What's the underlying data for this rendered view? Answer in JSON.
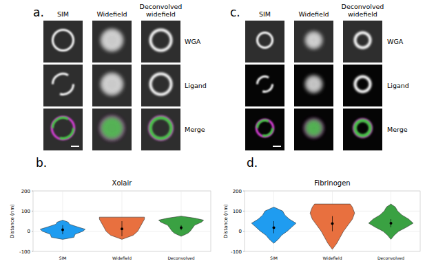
{
  "figure": {
    "panels": [
      {
        "label": "a.",
        "columns": [
          "SIM",
          "Widefield",
          "Deconvolved widefield"
        ],
        "rows": [
          "WGA",
          "Ligand",
          "Merge"
        ]
      },
      {
        "label": "c.",
        "columns": [
          "SIM",
          "Widefield",
          "Deconvolved widefield"
        ],
        "rows": [
          "WGA",
          "Ligand",
          "Merge"
        ]
      }
    ],
    "chart_labels": [
      "b.",
      "d."
    ]
  },
  "chart_data": [
    {
      "type": "violin",
      "title": "Xolair",
      "y_label": "Distance (nm)",
      "categories": [
        "SIM",
        "Widefield",
        "Deconvolved"
      ],
      "colors": [
        "#1f9cf0",
        "#e8703f",
        "#3aa142"
      ],
      "ylim": [
        -100,
        200
      ],
      "yticks": [
        -100,
        0,
        100,
        200
      ],
      "grid": true,
      "means": [
        7,
        12,
        18
      ],
      "whisker_low": [
        -15,
        -25,
        5
      ],
      "whisker_high": [
        30,
        50,
        30
      ],
      "violins": [
        {
          "y": [
            -40,
            -30,
            -15,
            0,
            10,
            20,
            35,
            45,
            55
          ],
          "width": [
            0,
            0.5,
            0.55,
            0.9,
            1,
            0.7,
            0.3,
            0.25,
            0
          ]
        },
        {
          "y": [
            -40,
            -20,
            0,
            20,
            40,
            60,
            70
          ],
          "width": [
            0,
            0.5,
            0.7,
            0.8,
            0.9,
            1,
            1
          ]
        },
        {
          "y": [
            -25,
            -10,
            0,
            15,
            30,
            45,
            55,
            65,
            75
          ],
          "width": [
            0,
            0.3,
            0.4,
            0.5,
            0.6,
            0.9,
            1,
            0.6,
            0
          ]
        }
      ]
    },
    {
      "type": "violin",
      "title": "Fibrinogen",
      "y_label": "Distance (nm)",
      "categories": [
        "SIM",
        "Widefield",
        "Deconvolved"
      ],
      "colors": [
        "#1f9cf0",
        "#e8703f",
        "#3aa142"
      ],
      "ylim": [
        -100,
        200
      ],
      "yticks": [
        -100,
        0,
        100,
        200
      ],
      "grid": true,
      "means": [
        18,
        38,
        40
      ],
      "whisker_low": [
        -10,
        0,
        20
      ],
      "whisker_high": [
        50,
        75,
        60
      ],
      "violins": [
        {
          "y": [
            -60,
            -40,
            -20,
            0,
            20,
            40,
            60,
            80,
            100,
            120
          ],
          "width": [
            0,
            0.2,
            0.35,
            0.6,
            0.8,
            1,
            0.7,
            0.5,
            0.4,
            0
          ]
        },
        {
          "y": [
            -90,
            -60,
            -30,
            0,
            30,
            60,
            90,
            120,
            135
          ],
          "width": [
            0,
            0.2,
            0.35,
            0.5,
            0.7,
            0.9,
            1,
            0.9,
            0.8
          ]
        },
        {
          "y": [
            -40,
            -20,
            0,
            20,
            40,
            60,
            80,
            100,
            120,
            135
          ],
          "width": [
            0,
            0.15,
            0.35,
            0.7,
            1,
            0.8,
            0.5,
            0.3,
            0.2,
            0
          ]
        }
      ]
    }
  ]
}
